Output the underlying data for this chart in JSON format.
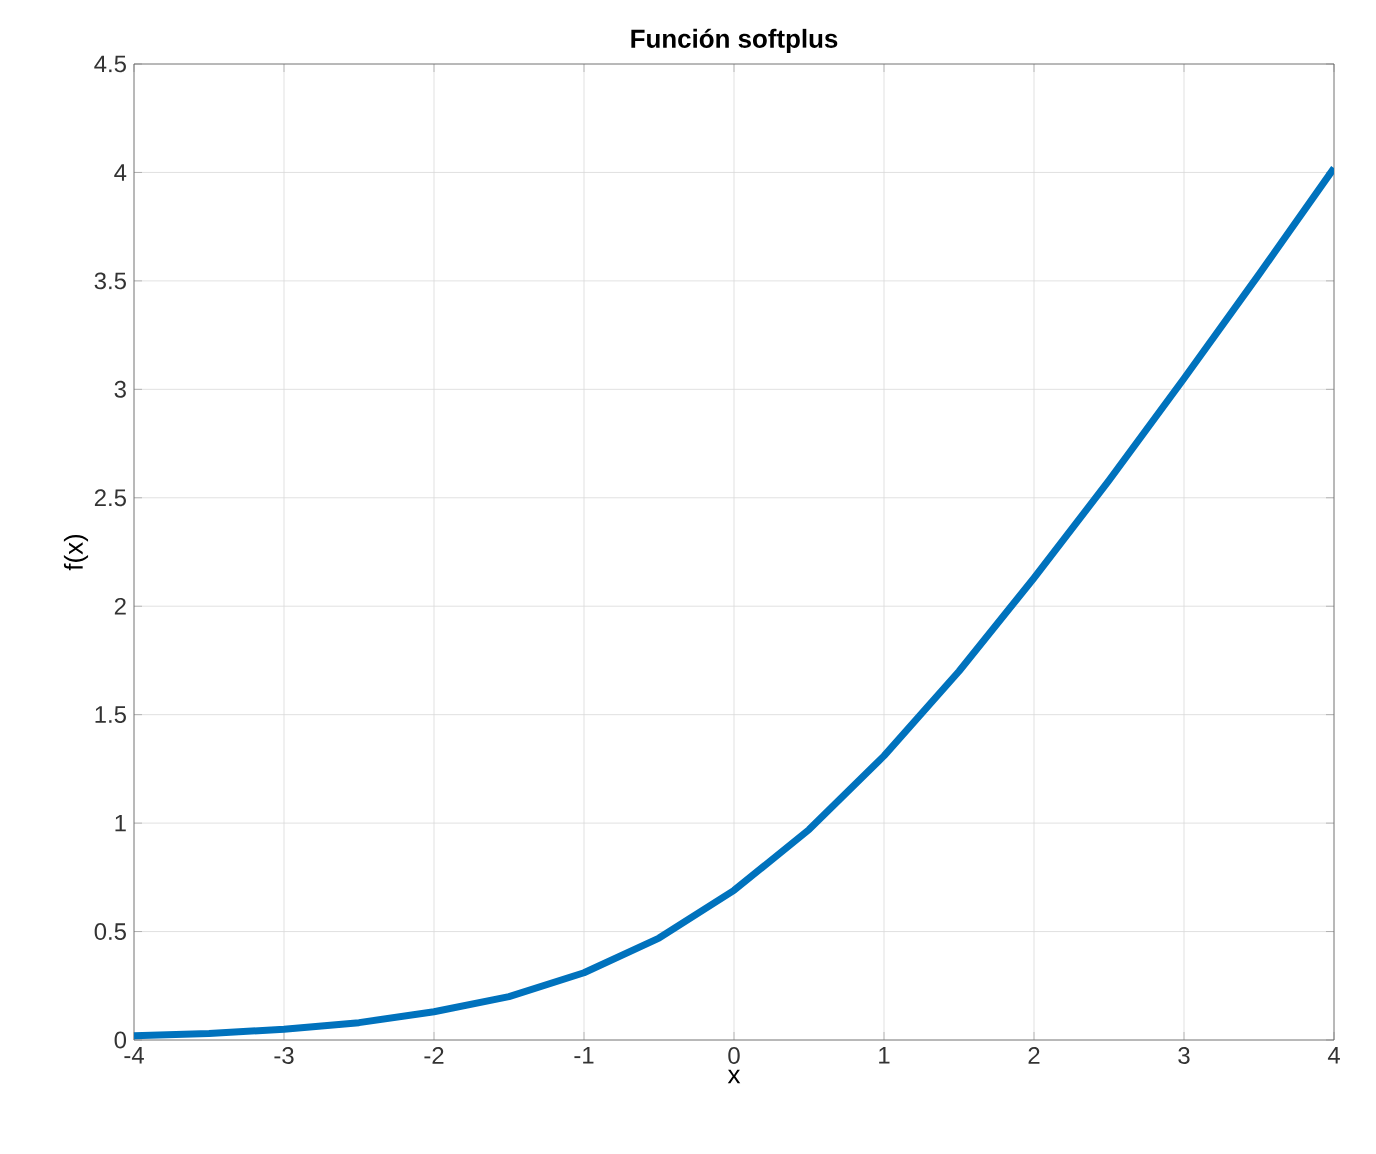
{
  "chart_data": {
    "type": "line",
    "title": "Función softplus",
    "xlabel": "x",
    "ylabel": "f(x)",
    "x": [
      -4,
      -3.5,
      -3,
      -2.5,
      -2,
      -1.5,
      -1,
      -0.5,
      0,
      0.5,
      1,
      1.5,
      2,
      2.5,
      3,
      3.5,
      4
    ],
    "values": [
      0.02,
      0.03,
      0.05,
      0.08,
      0.13,
      0.2,
      0.31,
      0.47,
      0.69,
      0.97,
      1.31,
      1.7,
      2.13,
      2.58,
      3.05,
      3.53,
      4.02
    ],
    "color": "#0072bd",
    "xlim": [
      -4,
      4
    ],
    "ylim": [
      0,
      4.5
    ],
    "xticks": [
      -4,
      -3,
      -2,
      -1,
      0,
      1,
      2,
      3,
      4
    ],
    "yticks": [
      0,
      0.5,
      1,
      1.5,
      2,
      2.5,
      3,
      3.5,
      4,
      4.5
    ],
    "grid": true
  }
}
